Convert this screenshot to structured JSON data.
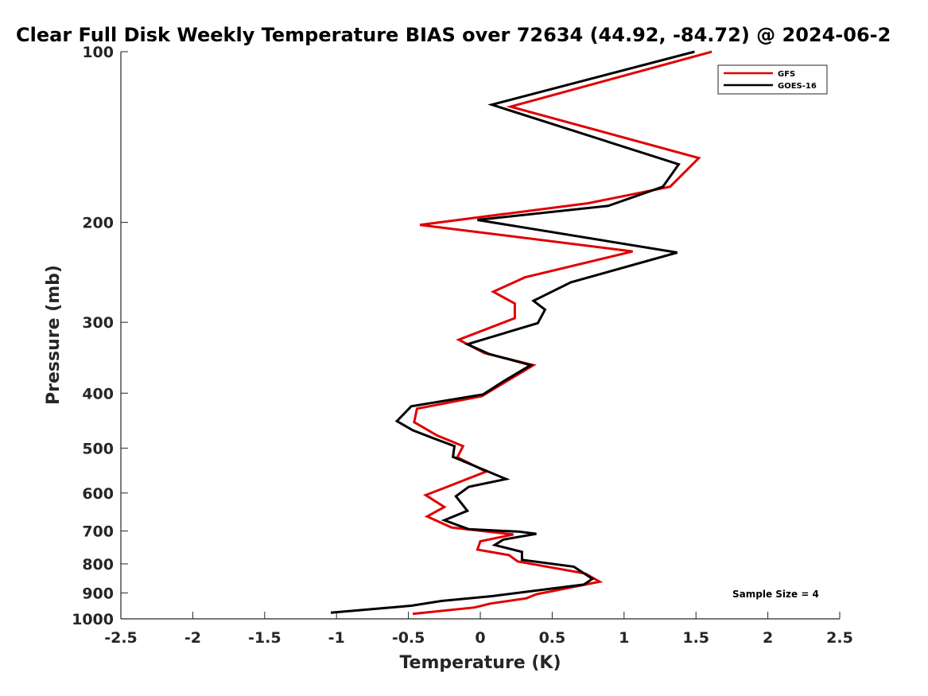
{
  "chart_data": {
    "type": "line",
    "title": "Clear Full Disk Weekly Temperature BIAS over 72634 (44.92, -84.72) @ 2024-06-2",
    "xlabel": "Temperature (K)",
    "ylabel": "Pressure (mb)",
    "xlim": [
      -2.5,
      2.5
    ],
    "ylim": [
      100,
      1000
    ],
    "y_scale": "log",
    "y_reversed": true,
    "x_ticks": [
      "-2.5",
      "-2",
      "-1.5",
      "-1",
      "-0.5",
      "0",
      "0.5",
      "1",
      "1.5",
      "2",
      "2.5"
    ],
    "x_tick_values": [
      -2.5,
      -2,
      -1.5,
      -1,
      -0.5,
      0,
      0.5,
      1,
      1.5,
      2,
      2.5
    ],
    "y_ticks": [
      "100",
      "200",
      "300",
      "400",
      "500",
      "600",
      "700",
      "800",
      "900",
      "1000"
    ],
    "y_tick_values": [
      100,
      200,
      300,
      400,
      500,
      600,
      700,
      800,
      900,
      1000
    ],
    "grid": false,
    "legend_position": "top-right",
    "annotation": "Sample Size = 4",
    "series": [
      {
        "name": "GFS",
        "color": "#e00000",
        "points": [
          [
            1.61,
            100
          ],
          [
            0.21,
            125
          ],
          [
            1.52,
            154
          ],
          [
            1.32,
            173
          ],
          [
            0.75,
            185
          ],
          [
            -0.42,
            202
          ],
          [
            1.06,
            225
          ],
          [
            0.31,
            250
          ],
          [
            0.09,
            265
          ],
          [
            0.24,
            278
          ],
          [
            0.24,
            295
          ],
          [
            -0.15,
            322
          ],
          [
            0.03,
            340
          ],
          [
            0.37,
            357
          ],
          [
            0.01,
            405
          ],
          [
            -0.44,
            426
          ],
          [
            -0.46,
            450
          ],
          [
            -0.3,
            475
          ],
          [
            -0.12,
            496
          ],
          [
            -0.16,
            519
          ],
          [
            0.04,
            550
          ],
          [
            -0.26,
            589
          ],
          [
            -0.38,
            605
          ],
          [
            -0.25,
            635
          ],
          [
            -0.37,
            660
          ],
          [
            -0.2,
            690
          ],
          [
            0.23,
            710
          ],
          [
            0.0,
            730
          ],
          [
            -0.02,
            755
          ],
          [
            0.2,
            772
          ],
          [
            0.26,
            792
          ],
          [
            0.73,
            832
          ],
          [
            0.83,
            860
          ],
          [
            0.39,
            905
          ],
          [
            0.32,
            920
          ],
          [
            0.07,
            940
          ],
          [
            -0.04,
            955
          ],
          [
            -0.47,
            980
          ]
        ]
      },
      {
        "name": "GOES-16",
        "color": "#000000",
        "points": [
          [
            1.49,
            100
          ],
          [
            0.08,
            124
          ],
          [
            1.38,
            158
          ],
          [
            1.27,
            173
          ],
          [
            0.89,
            187
          ],
          [
            -0.02,
            198
          ],
          [
            1.37,
            226
          ],
          [
            0.63,
            255
          ],
          [
            0.37,
            275
          ],
          [
            0.45,
            285
          ],
          [
            0.4,
            301
          ],
          [
            -0.09,
            328
          ],
          [
            0.06,
            341
          ],
          [
            0.35,
            357
          ],
          [
            0.17,
            380
          ],
          [
            0.02,
            402
          ],
          [
            -0.48,
            422
          ],
          [
            -0.58,
            448
          ],
          [
            -0.47,
            465
          ],
          [
            -0.33,
            480
          ],
          [
            -0.18,
            496
          ],
          [
            -0.19,
            518
          ],
          [
            -0.02,
            540
          ],
          [
            0.18,
            567
          ],
          [
            -0.08,
            585
          ],
          [
            -0.17,
            608
          ],
          [
            -0.09,
            645
          ],
          [
            -0.25,
            670
          ],
          [
            -0.08,
            695
          ],
          [
            0.27,
            702
          ],
          [
            0.39,
            708
          ],
          [
            0.16,
            725
          ],
          [
            0.1,
            741
          ],
          [
            0.29,
            762
          ],
          [
            0.29,
            787
          ],
          [
            0.65,
            809
          ],
          [
            0.78,
            850
          ],
          [
            0.72,
            870
          ],
          [
            0.08,
            912
          ],
          [
            -0.27,
            930
          ],
          [
            -0.48,
            948
          ],
          [
            -1.04,
            975
          ]
        ]
      }
    ]
  }
}
